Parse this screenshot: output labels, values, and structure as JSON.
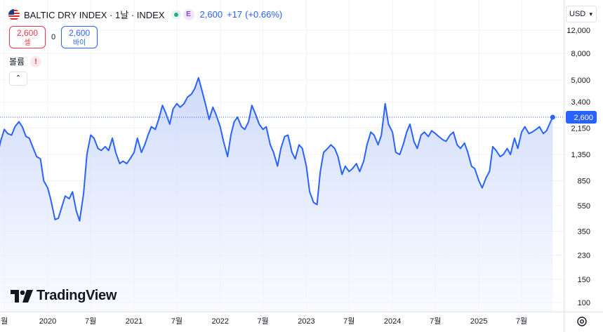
{
  "header": {
    "title": "BALTIC DRY INDEX · 1날 · INDEX",
    "status_badge": "E",
    "last_price": "2,600",
    "change": "+17",
    "change_pct": "(+0.66%)"
  },
  "trade": {
    "sell_price": "2,600",
    "sell_label": "셀",
    "spread": "0",
    "buy_price": "2,600",
    "buy_label": "바이"
  },
  "volume_label": "볼륨",
  "volume_warning": "!",
  "currency": "USD",
  "logo_text": "TradingView",
  "colors": {
    "line": "#2962ff",
    "fill_top": "#c9d6fb",
    "fill_bottom": "#f4f7ff",
    "grid": "#f0f3fa",
    "text": "#131722",
    "sell": "#f23645",
    "buy": "#2962ff"
  },
  "chart_data": {
    "type": "area",
    "title": "BALTIC DRY INDEX",
    "y_scale": "log",
    "grid": true,
    "y_ticks": [
      12000,
      8000,
      5000,
      3400,
      2150,
      1350,
      850,
      550,
      350,
      230,
      150,
      100
    ],
    "y_tick_labels": [
      "12,000",
      "8,000",
      "5,000",
      "3,400",
      "2,150",
      "1,350",
      "850",
      "550",
      "350",
      "230",
      "150",
      "100"
    ],
    "x_ticks": [
      {
        "label": "월",
        "date": "2019-07-01"
      },
      {
        "label": "2020",
        "date": "2020-01-01"
      },
      {
        "label": "7월",
        "date": "2020-07-01"
      },
      {
        "label": "2021",
        "date": "2021-01-01"
      },
      {
        "label": "7월",
        "date": "2021-07-01"
      },
      {
        "label": "2022",
        "date": "2022-01-01"
      },
      {
        "label": "7월",
        "date": "2022-07-01"
      },
      {
        "label": "2023",
        "date": "2023-01-01"
      },
      {
        "label": "7월",
        "date": "2023-07-01"
      },
      {
        "label": "2024",
        "date": "2024-01-01"
      },
      {
        "label": "7월",
        "date": "2024-07-01"
      },
      {
        "label": "2025",
        "date": "2025-01-01"
      },
      {
        "label": "7월",
        "date": "2025-07-01"
      }
    ],
    "last_value": 2600,
    "last_value_label": "2,600",
    "series": [
      {
        "name": "BALTIC DRY INDEX",
        "points": [
          [
            "2019-06-01",
            1300
          ],
          [
            "2019-06-15",
            1700
          ],
          [
            "2019-07-01",
            2100
          ],
          [
            "2019-07-15",
            1950
          ],
          [
            "2019-08-01",
            1900
          ],
          [
            "2019-08-15",
            2200
          ],
          [
            "2019-09-01",
            2400
          ],
          [
            "2019-09-15",
            2200
          ],
          [
            "2019-10-01",
            1850
          ],
          [
            "2019-10-15",
            1800
          ],
          [
            "2019-11-01",
            1500
          ],
          [
            "2019-11-15",
            1300
          ],
          [
            "2019-12-01",
            1250
          ],
          [
            "2019-12-15",
            850
          ],
          [
            "2020-01-01",
            750
          ],
          [
            "2020-01-15",
            600
          ],
          [
            "2020-02-01",
            430
          ],
          [
            "2020-02-15",
            440
          ],
          [
            "2020-03-01",
            540
          ],
          [
            "2020-03-15",
            650
          ],
          [
            "2020-04-01",
            620
          ],
          [
            "2020-04-15",
            700
          ],
          [
            "2020-05-01",
            500
          ],
          [
            "2020-05-15",
            420
          ],
          [
            "2020-06-01",
            680
          ],
          [
            "2020-06-15",
            1350
          ],
          [
            "2020-07-01",
            1900
          ],
          [
            "2020-07-15",
            1800
          ],
          [
            "2020-08-01",
            1500
          ],
          [
            "2020-08-15",
            1450
          ],
          [
            "2020-09-01",
            1550
          ],
          [
            "2020-09-15",
            1450
          ],
          [
            "2020-10-01",
            1800
          ],
          [
            "2020-10-15",
            1400
          ],
          [
            "2020-11-01",
            1150
          ],
          [
            "2020-11-15",
            1200
          ],
          [
            "2020-12-01",
            1150
          ],
          [
            "2020-12-15",
            1250
          ],
          [
            "2021-01-01",
            1400
          ],
          [
            "2021-01-15",
            1800
          ],
          [
            "2021-02-01",
            1400
          ],
          [
            "2021-02-15",
            1600
          ],
          [
            "2021-03-01",
            1900
          ],
          [
            "2021-03-15",
            2200
          ],
          [
            "2021-04-01",
            2100
          ],
          [
            "2021-04-15",
            2500
          ],
          [
            "2021-05-01",
            3200
          ],
          [
            "2021-05-15",
            2800
          ],
          [
            "2021-06-01",
            2300
          ],
          [
            "2021-06-15",
            3000
          ],
          [
            "2021-07-01",
            3300
          ],
          [
            "2021-07-15",
            3100
          ],
          [
            "2021-08-01",
            3300
          ],
          [
            "2021-08-15",
            3700
          ],
          [
            "2021-09-01",
            3900
          ],
          [
            "2021-09-15",
            4300
          ],
          [
            "2021-10-01",
            5200
          ],
          [
            "2021-10-15",
            4200
          ],
          [
            "2021-11-01",
            3200
          ],
          [
            "2021-11-15",
            2500
          ],
          [
            "2021-12-01",
            3100
          ],
          [
            "2021-12-15",
            2700
          ],
          [
            "2022-01-01",
            2200
          ],
          [
            "2022-01-15",
            1700
          ],
          [
            "2022-02-01",
            1300
          ],
          [
            "2022-02-15",
            1900
          ],
          [
            "2022-03-01",
            2400
          ],
          [
            "2022-03-15",
            2600
          ],
          [
            "2022-04-01",
            2200
          ],
          [
            "2022-04-15",
            2100
          ],
          [
            "2022-05-01",
            2400
          ],
          [
            "2022-05-15",
            3200
          ],
          [
            "2022-06-01",
            2700
          ],
          [
            "2022-06-15",
            2300
          ],
          [
            "2022-07-01",
            2100
          ],
          [
            "2022-07-15",
            2200
          ],
          [
            "2022-08-01",
            1600
          ],
          [
            "2022-08-15",
            1400
          ],
          [
            "2022-09-01",
            1100
          ],
          [
            "2022-09-15",
            1500
          ],
          [
            "2022-10-01",
            1850
          ],
          [
            "2022-10-15",
            1900
          ],
          [
            "2022-11-01",
            1400
          ],
          [
            "2022-11-15",
            1250
          ],
          [
            "2022-12-01",
            1600
          ],
          [
            "2022-12-15",
            1500
          ],
          [
            "2023-01-01",
            1100
          ],
          [
            "2023-01-15",
            700
          ],
          [
            "2023-02-01",
            580
          ],
          [
            "2023-02-15",
            560
          ],
          [
            "2023-03-01",
            1000
          ],
          [
            "2023-03-15",
            1400
          ],
          [
            "2023-04-01",
            1500
          ],
          [
            "2023-04-15",
            1600
          ],
          [
            "2023-05-01",
            1500
          ],
          [
            "2023-05-15",
            1300
          ],
          [
            "2023-06-01",
            950
          ],
          [
            "2023-06-15",
            1100
          ],
          [
            "2023-07-01",
            1000
          ],
          [
            "2023-07-15",
            1050
          ],
          [
            "2023-08-01",
            1150
          ],
          [
            "2023-08-15",
            1000
          ],
          [
            "2023-09-01",
            1200
          ],
          [
            "2023-09-15",
            1600
          ],
          [
            "2023-10-01",
            2000
          ],
          [
            "2023-10-15",
            1900
          ],
          [
            "2023-11-01",
            1600
          ],
          [
            "2023-11-15",
            1900
          ],
          [
            "2023-12-01",
            3300
          ],
          [
            "2023-12-15",
            2300
          ],
          [
            "2024-01-01",
            2000
          ],
          [
            "2024-01-15",
            1400
          ],
          [
            "2024-02-01",
            1350
          ],
          [
            "2024-02-15",
            1600
          ],
          [
            "2024-03-01",
            2000
          ],
          [
            "2024-03-15",
            2300
          ],
          [
            "2024-04-01",
            1700
          ],
          [
            "2024-04-15",
            1500
          ],
          [
            "2024-05-01",
            1900
          ],
          [
            "2024-05-15",
            2000
          ],
          [
            "2024-06-01",
            1850
          ],
          [
            "2024-06-15",
            2050
          ],
          [
            "2024-07-01",
            1950
          ],
          [
            "2024-07-15",
            1850
          ],
          [
            "2024-08-01",
            1750
          ],
          [
            "2024-08-15",
            1700
          ],
          [
            "2024-09-01",
            1900
          ],
          [
            "2024-09-15",
            2000
          ],
          [
            "2024-10-01",
            1600
          ],
          [
            "2024-10-15",
            1500
          ],
          [
            "2024-11-01",
            1650
          ],
          [
            "2024-11-15",
            1400
          ],
          [
            "2024-12-01",
            1100
          ],
          [
            "2024-12-15",
            1050
          ],
          [
            "2025-01-01",
            850
          ],
          [
            "2025-01-15",
            750
          ],
          [
            "2025-02-01",
            900
          ],
          [
            "2025-02-15",
            1000
          ],
          [
            "2025-03-01",
            1550
          ],
          [
            "2025-03-15",
            1450
          ],
          [
            "2025-04-01",
            1300
          ],
          [
            "2025-04-15",
            1350
          ],
          [
            "2025-05-01",
            1500
          ],
          [
            "2025-05-15",
            1350
          ],
          [
            "2025-06-01",
            1800
          ],
          [
            "2025-06-15",
            1500
          ],
          [
            "2025-07-01",
            2000
          ],
          [
            "2025-07-15",
            2200
          ],
          [
            "2025-08-01",
            1950
          ],
          [
            "2025-08-15",
            2000
          ],
          [
            "2025-09-01",
            2100
          ],
          [
            "2025-09-15",
            2200
          ],
          [
            "2025-10-01",
            1950
          ],
          [
            "2025-10-15",
            2050
          ],
          [
            "2025-11-01",
            2400
          ],
          [
            "2025-11-10",
            2600
          ]
        ]
      }
    ]
  }
}
